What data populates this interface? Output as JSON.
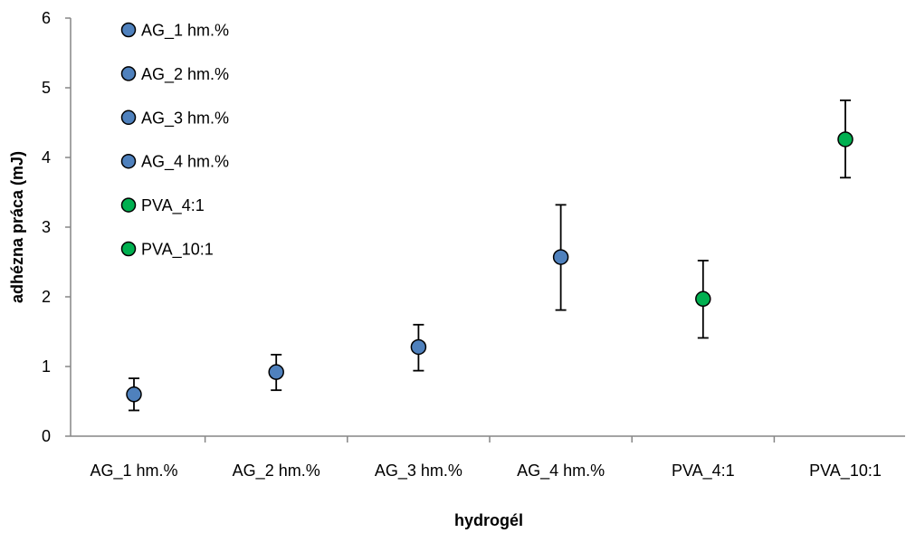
{
  "chart_data": {
    "type": "scatter",
    "xlabel": "hydrogél",
    "ylabel": "adhézna práca (mJ)",
    "ylim": [
      0,
      6
    ],
    "yticks": [
      0,
      1,
      2,
      3,
      4,
      5,
      6
    ],
    "grid": false,
    "legend_position": "top-left",
    "categories": [
      "AG_1 hm.%",
      "AG_2 hm.%",
      "AG_3 hm.%",
      "AG_4 hm.%",
      "PVA_4:1",
      "PVA_10:1"
    ],
    "series": [
      {
        "name": "AG_1 hm.%",
        "category": "AG_1 hm.%",
        "value": 0.6,
        "err_low": 0.37,
        "err_high": 0.83,
        "color": "#4F81BD"
      },
      {
        "name": "AG_2 hm.%",
        "category": "AG_2 hm.%",
        "value": 0.92,
        "err_low": 0.66,
        "err_high": 1.17,
        "color": "#4F81BD"
      },
      {
        "name": "AG_3 hm.%",
        "category": "AG_3 hm.%",
        "value": 1.28,
        "err_low": 0.94,
        "err_high": 1.6,
        "color": "#4F81BD"
      },
      {
        "name": "AG_4 hm.%",
        "category": "AG_4 hm.%",
        "value": 2.57,
        "err_low": 1.81,
        "err_high": 3.32,
        "color": "#4F81BD"
      },
      {
        "name": "PVA_4:1",
        "category": "PVA_4:1",
        "value": 1.97,
        "err_low": 1.41,
        "err_high": 2.52,
        "color": "#00B050"
      },
      {
        "name": "PVA_10:1",
        "category": "PVA_10:1",
        "value": 4.26,
        "err_low": 3.71,
        "err_high": 4.82,
        "color": "#00B050"
      }
    ]
  }
}
